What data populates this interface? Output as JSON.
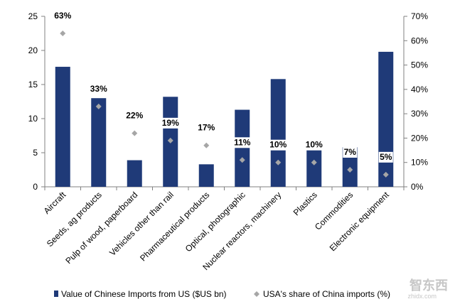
{
  "chart_data": {
    "type": "bar",
    "title": "",
    "xlabel": "",
    "categories": [
      "Aircraft",
      "Seeds, ag products",
      "Pulp of wood, paperboard",
      "Vehicles other than rail",
      "Pharmaceutical products",
      "Optical, photographic",
      "Nuclear reactors, machinery",
      "Plastics",
      "Commodities",
      "Electronic equipment"
    ],
    "series": [
      {
        "name": "Value of Chinese Imports from US ($US bn)",
        "axis": "left",
        "mark": "bar",
        "color": "#1f3a78",
        "values": [
          17.6,
          13.0,
          3.9,
          13.2,
          3.3,
          11.3,
          15.8,
          6.2,
          5.8,
          19.8
        ]
      },
      {
        "name": "USA's share of China imports (%)",
        "axis": "right",
        "mark": "diamond",
        "color": "#a6a6a6",
        "values": [
          63,
          33,
          22,
          19,
          17,
          11,
          10,
          10,
          7,
          5
        ]
      }
    ],
    "data_labels": [
      "63%",
      "33%",
      "22%",
      "19%",
      "17%",
      "11%",
      "10%",
      "10%",
      "7%",
      "5%"
    ],
    "ylim": [
      0,
      25
    ],
    "yticks": [
      0,
      5,
      10,
      15,
      20,
      25
    ],
    "ylim_right": [
      0,
      70
    ],
    "yticks_right": [
      "0%",
      "10%",
      "20%",
      "30%",
      "40%",
      "50%",
      "60%",
      "70%"
    ],
    "legend": "bottom"
  },
  "watermark": {
    "text": "智东西",
    "subtext": "zhidx.com"
  }
}
